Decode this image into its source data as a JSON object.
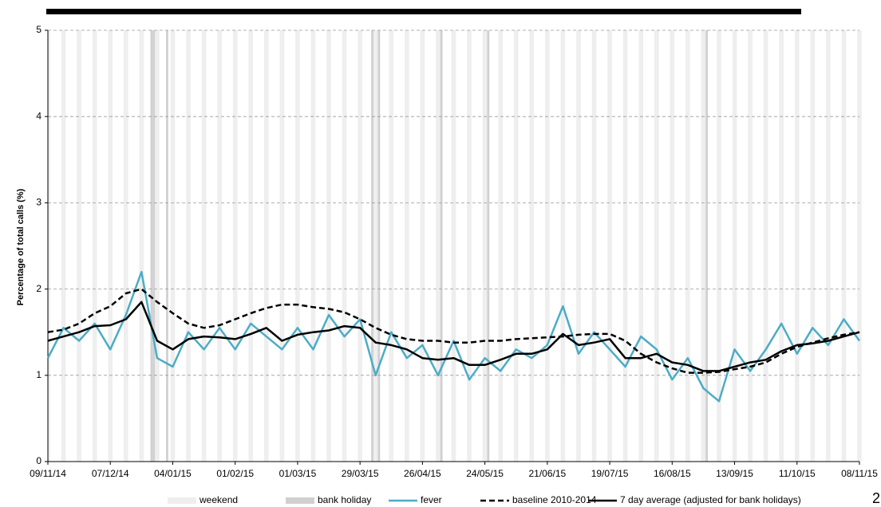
{
  "chart_data": {
    "type": "line",
    "y_label": "Percentage of total calls (%)",
    "page_number": "2",
    "x": [
      "09/11/14",
      "16/11/14",
      "23/11/14",
      "30/11/14",
      "07/12/14",
      "14/12/14",
      "21/12/14",
      "28/12/14",
      "04/01/15",
      "11/01/15",
      "18/01/15",
      "25/01/15",
      "01/02/15",
      "08/02/15",
      "15/02/15",
      "22/02/15",
      "01/03/15",
      "08/03/15",
      "15/03/15",
      "22/03/15",
      "29/03/15",
      "05/04/15",
      "12/04/15",
      "19/04/15",
      "26/04/15",
      "03/05/15",
      "10/05/15",
      "17/05/15",
      "24/05/15",
      "31/05/15",
      "07/06/15",
      "14/06/15",
      "21/06/15",
      "28/06/15",
      "05/07/15",
      "12/07/15",
      "19/07/15",
      "26/07/15",
      "02/08/15",
      "09/08/15",
      "16/08/15",
      "23/08/15",
      "30/08/15",
      "06/09/15",
      "13/09/15",
      "20/09/15",
      "27/09/15",
      "04/10/15",
      "11/10/15",
      "18/10/15",
      "25/10/15",
      "01/11/15",
      "08/11/15"
    ],
    "series": [
      {
        "name": "fever",
        "color": "#4bacc6",
        "width": 2.5,
        "dash": "solid",
        "values": [
          1.2,
          1.55,
          1.4,
          1.6,
          1.3,
          1.7,
          2.2,
          1.2,
          1.1,
          1.5,
          1.3,
          1.55,
          1.3,
          1.6,
          1.45,
          1.3,
          1.55,
          1.3,
          1.7,
          1.45,
          1.65,
          1.0,
          1.5,
          1.2,
          1.35,
          1.0,
          1.4,
          0.95,
          1.2,
          1.05,
          1.3,
          1.2,
          1.35,
          1.8,
          1.25,
          1.5,
          1.3,
          1.1,
          1.45,
          1.3,
          0.95,
          1.2,
          0.85,
          0.7,
          1.3,
          1.05,
          1.3,
          1.6,
          1.25,
          1.55,
          1.35,
          1.65,
          1.4
        ]
      },
      {
        "name": "baseline 2010-2014",
        "color": "#000000",
        "width": 2.5,
        "dash": "dashed",
        "values": [
          1.5,
          1.53,
          1.6,
          1.72,
          1.8,
          1.95,
          2.0,
          1.85,
          1.72,
          1.6,
          1.55,
          1.58,
          1.65,
          1.72,
          1.78,
          1.82,
          1.82,
          1.79,
          1.77,
          1.73,
          1.65,
          1.55,
          1.47,
          1.42,
          1.4,
          1.4,
          1.38,
          1.38,
          1.4,
          1.4,
          1.42,
          1.43,
          1.44,
          1.45,
          1.47,
          1.48,
          1.48,
          1.4,
          1.25,
          1.15,
          1.08,
          1.03,
          1.03,
          1.04,
          1.07,
          1.1,
          1.15,
          1.25,
          1.33,
          1.38,
          1.43,
          1.47,
          1.5
        ]
      },
      {
        "name": "7 day average (adjusted for bank holidays)",
        "color": "#000000",
        "width": 2.5,
        "dash": "solid",
        "values": [
          1.4,
          1.45,
          1.5,
          1.57,
          1.58,
          1.65,
          1.85,
          1.4,
          1.3,
          1.42,
          1.45,
          1.44,
          1.42,
          1.48,
          1.55,
          1.4,
          1.47,
          1.5,
          1.52,
          1.57,
          1.55,
          1.38,
          1.35,
          1.3,
          1.2,
          1.18,
          1.2,
          1.12,
          1.12,
          1.18,
          1.25,
          1.25,
          1.3,
          1.48,
          1.35,
          1.38,
          1.42,
          1.2,
          1.2,
          1.25,
          1.15,
          1.12,
          1.05,
          1.05,
          1.1,
          1.15,
          1.18,
          1.28,
          1.35,
          1.37,
          1.4,
          1.45,
          1.5
        ]
      }
    ],
    "xlim": [
      "09/11/14",
      "08/11/15"
    ],
    "xticks": [
      "09/11/14",
      "07/12/14",
      "04/01/15",
      "01/02/15",
      "01/03/15",
      "29/03/15",
      "26/04/15",
      "24/05/15",
      "21/06/15",
      "19/07/15",
      "16/08/15",
      "13/09/15",
      "11/10/15",
      "08/11/15"
    ],
    "ylim": [
      0,
      5
    ],
    "yticks": [
      0,
      1,
      2,
      3,
      4,
      5
    ],
    "grid": true,
    "weekend": {
      "label": "weekend",
      "color": "#eeeeee"
    },
    "bank_holiday": {
      "label": "bank holiday",
      "color": "#d0d0d0",
      "dates": [
        "25/12/14",
        "26/12/14",
        "01/01/15",
        "03/04/15",
        "06/04/15",
        "04/05/15",
        "25/05/15",
        "31/08/15"
      ]
    }
  }
}
